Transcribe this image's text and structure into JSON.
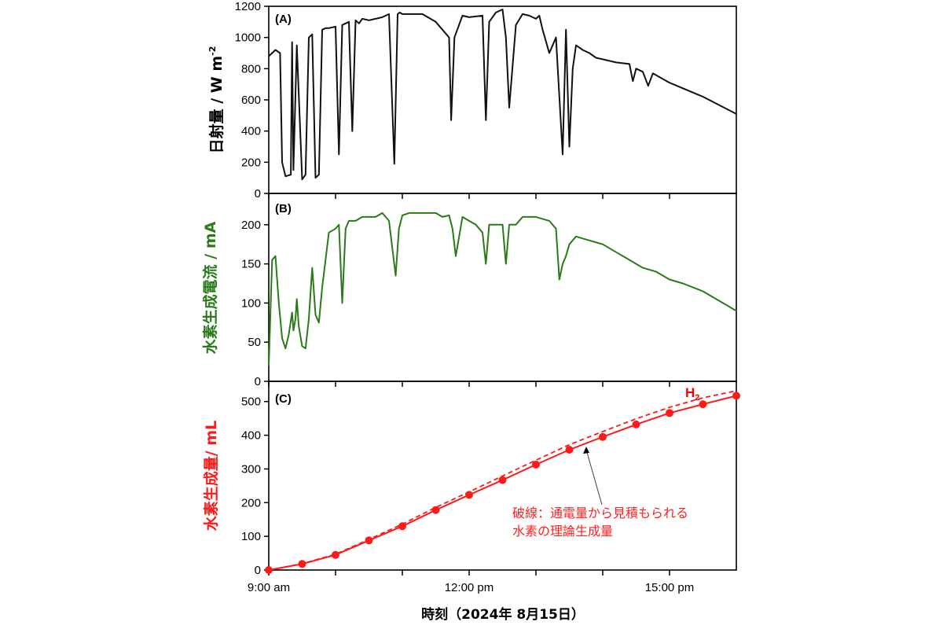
{
  "figure": {
    "xlabel": "時刻（2024年 8月15日）",
    "x_ticks": [
      {
        "label": "9:00 am",
        "hour": 9
      },
      {
        "label": "12:00 pm",
        "hour": 12
      },
      {
        "label": "15:00 pm",
        "hour": 15
      }
    ],
    "x_minor_hours": [
      10,
      11,
      13,
      14
    ],
    "x_range_hours": [
      9,
      16
    ]
  },
  "colors": {
    "panelA": "#111111",
    "panelB": "#2a7a1a",
    "panelC": "#ff1a1a",
    "annotation": "#ff3030"
  },
  "chart_data": [
    {
      "type": "line",
      "panel_label": "(A)",
      "ylabel": "日射量 / W m",
      "ylabel_sup": "-2",
      "ylim": [
        0,
        1200
      ],
      "y_ticks": [
        "0",
        "200",
        "400",
        "600",
        "800",
        "1000",
        "1200"
      ],
      "x_hours": [
        9.0,
        9.1,
        9.17,
        9.2,
        9.25,
        9.33,
        9.35,
        9.37,
        9.42,
        9.5,
        9.55,
        9.6,
        9.65,
        9.7,
        9.75,
        9.8,
        9.85,
        9.9,
        10.0,
        10.05,
        10.1,
        10.2,
        10.25,
        10.3,
        10.35,
        10.4,
        10.5,
        10.6,
        10.7,
        10.8,
        10.88,
        10.93,
        10.96,
        11.0,
        11.1,
        11.3,
        11.5,
        11.7,
        11.73,
        11.78,
        11.9,
        12.0,
        12.2,
        12.25,
        12.3,
        12.4,
        12.5,
        12.55,
        12.6,
        12.7,
        12.8,
        12.9,
        13.0,
        13.05,
        13.1,
        13.2,
        13.3,
        13.4,
        13.45,
        13.5,
        13.55,
        13.6,
        13.7,
        13.8,
        13.9,
        14.0,
        14.2,
        14.4,
        14.45,
        14.5,
        14.6,
        14.68,
        14.75,
        15.0,
        15.5,
        16.0
      ],
      "series": [
        {
          "values": [
            880,
            920,
            900,
            200,
            110,
            120,
            970,
            150,
            950,
            90,
            120,
            1000,
            1020,
            100,
            120,
            1050,
            1060,
            1060,
            1070,
            250,
            1080,
            1100,
            400,
            1110,
            1090,
            1120,
            1110,
            1120,
            1130,
            1150,
            190,
            1150,
            1160,
            1150,
            1150,
            1150,
            1100,
            1000,
            470,
            1000,
            1140,
            1130,
            1140,
            470,
            1100,
            1160,
            1180,
            1000,
            550,
            1080,
            1150,
            1140,
            1120,
            1140,
            1050,
            900,
            1000,
            250,
            1050,
            300,
            800,
            950,
            920,
            900,
            870,
            860,
            840,
            830,
            720,
            800,
            780,
            690,
            770,
            710,
            620,
            510
          ]
        }
      ]
    },
    {
      "type": "line",
      "panel_label": "(B)",
      "ylabel": "水素生成電流 / mA",
      "ylim": [
        0,
        240
      ],
      "y_ticks": [
        "0",
        "50",
        "100",
        "150",
        "200"
      ],
      "x_hours": [
        9.0,
        9.05,
        9.1,
        9.15,
        9.2,
        9.25,
        9.3,
        9.35,
        9.37,
        9.4,
        9.42,
        9.45,
        9.5,
        9.55,
        9.6,
        9.65,
        9.7,
        9.75,
        9.8,
        9.9,
        10.0,
        10.05,
        10.1,
        10.15,
        10.2,
        10.3,
        10.4,
        10.5,
        10.6,
        10.7,
        10.8,
        10.9,
        10.95,
        11.0,
        11.1,
        11.3,
        11.5,
        11.6,
        11.7,
        11.75,
        11.8,
        11.9,
        12.0,
        12.1,
        12.2,
        12.25,
        12.3,
        12.4,
        12.5,
        12.55,
        12.6,
        12.7,
        12.8,
        13.0,
        13.2,
        13.3,
        13.35,
        13.4,
        13.45,
        13.5,
        13.6,
        13.8,
        14.0,
        14.2,
        14.4,
        14.6,
        14.8,
        15.0,
        15.2,
        15.5,
        15.8,
        16.0
      ],
      "series": [
        {
          "values": [
            20,
            155,
            160,
            100,
            55,
            42,
            60,
            88,
            65,
            80,
            105,
            70,
            45,
            42,
            80,
            145,
            85,
            75,
            120,
            190,
            195,
            200,
            100,
            195,
            205,
            205,
            210,
            210,
            210,
            215,
            205,
            135,
            195,
            212,
            215,
            215,
            215,
            210,
            212,
            195,
            160,
            210,
            205,
            200,
            190,
            150,
            200,
            200,
            200,
            150,
            200,
            200,
            210,
            210,
            205,
            195,
            130,
            150,
            160,
            175,
            185,
            180,
            175,
            165,
            155,
            145,
            140,
            130,
            125,
            115,
            100,
            90
          ]
        }
      ]
    },
    {
      "type": "line",
      "panel_label": "(C)",
      "ylabel": "水素生成量/ mL",
      "ylim": [
        0,
        560
      ],
      "y_ticks": [
        "0",
        "100",
        "200",
        "300",
        "400",
        "500"
      ],
      "series_label": "H",
      "series_label_sub": "2",
      "annotation_line1": "破線：通電量から見積もられる",
      "annotation_line2": "水素の理論生成量",
      "x_hours": [
        9.0,
        9.5,
        10.0,
        10.5,
        11.0,
        11.5,
        12.0,
        12.5,
        13.0,
        13.5,
        14.0,
        14.5,
        15.0,
        15.5,
        16.0
      ],
      "series": [
        {
          "style": "measured",
          "values": [
            0,
            18,
            45,
            88,
            130,
            178,
            223,
            267,
            313,
            357,
            395,
            432,
            466,
            492,
            517
          ]
        },
        {
          "style": "theoretical",
          "values": [
            0,
            19,
            47,
            91,
            136,
            186,
            232,
            279,
            326,
            372,
            411,
            449,
            483,
            511,
            532
          ]
        }
      ]
    }
  ]
}
